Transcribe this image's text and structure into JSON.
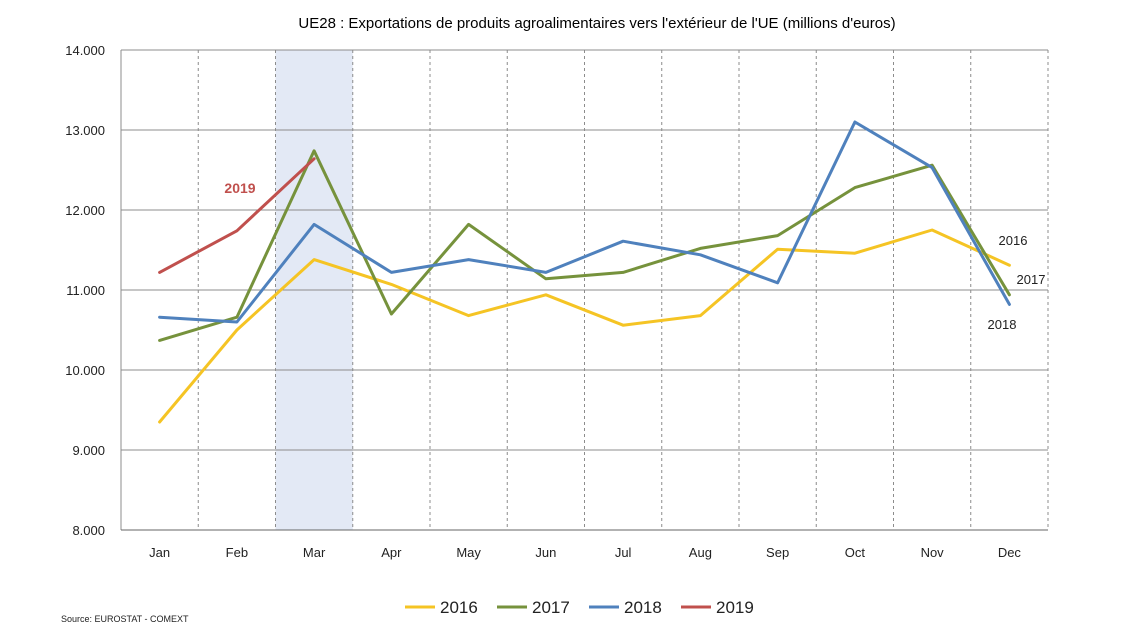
{
  "chart_data": {
    "type": "line",
    "title": "UE28 : Exportations de produits agroalimentaires vers l'extérieur de l'UE (millions d'euros)",
    "source": "Source: EUROSTAT - COMEXT",
    "categories": [
      "Jan",
      "Feb",
      "Mar",
      "Apr",
      "May",
      "Jun",
      "Jul",
      "Aug",
      "Sep",
      "Oct",
      "Nov",
      "Dec"
    ],
    "ylim": [
      8000,
      14000
    ],
    "yticks": [
      {
        "value": 8000,
        "label": "8.000"
      },
      {
        "value": 9000,
        "label": "9.000"
      },
      {
        "value": 10000,
        "label": "10.000"
      },
      {
        "value": 11000,
        "label": "11.000"
      },
      {
        "value": 12000,
        "label": "12.000"
      },
      {
        "value": 13000,
        "label": "13.000"
      },
      {
        "value": 14000,
        "label": "14.000"
      }
    ],
    "grid": true,
    "highlight_category": "Mar",
    "highlight_color": "#e3e9f5",
    "legend_position": "bottom",
    "series": [
      {
        "name": "2016",
        "color": "#f5c424",
        "values": [
          9350,
          10500,
          11380,
          11070,
          10680,
          10940,
          10560,
          10680,
          11510,
          11460,
          11750,
          11310
        ]
      },
      {
        "name": "2017",
        "color": "#76923c",
        "values": [
          10370,
          10660,
          12740,
          10700,
          11820,
          11140,
          11220,
          11520,
          11680,
          12280,
          12560,
          10940
        ]
      },
      {
        "name": "2018",
        "color": "#4f81bd",
        "values": [
          10660,
          10600,
          11820,
          11220,
          11380,
          11220,
          11610,
          11440,
          11090,
          13100,
          12530,
          10820
        ]
      },
      {
        "name": "2019",
        "color": "#c0504d",
        "values": [
          11220,
          11740,
          12640,
          null,
          null,
          null,
          null,
          null,
          null,
          null,
          null,
          null
        ]
      }
    ],
    "annotations": [
      {
        "text": "2019",
        "series": "2019",
        "color": "#c0504d"
      },
      {
        "text": "2016",
        "series": "2016",
        "color": "#222222"
      },
      {
        "text": "2017",
        "series": "2017",
        "color": "#222222"
      },
      {
        "text": "2018",
        "series": "2018",
        "color": "#222222"
      }
    ]
  }
}
